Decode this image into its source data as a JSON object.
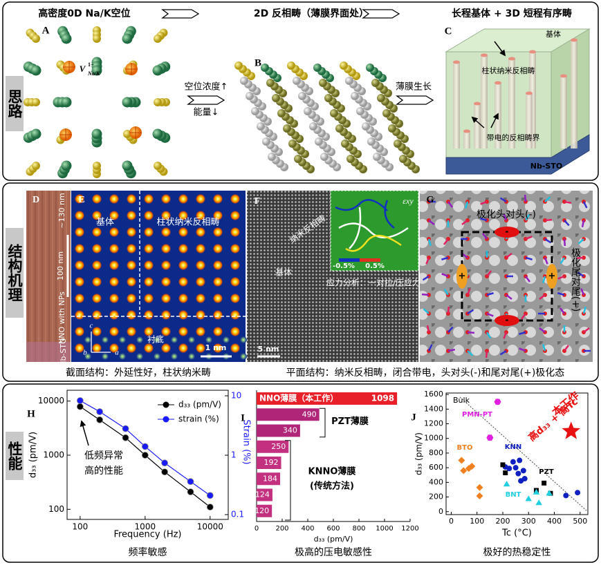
{
  "idea": {
    "label": "思路",
    "titles": [
      "高密度0D Na/K空位",
      "2D 反相畴（薄膜界面处）",
      "长程基体 + 3D 短程有序畴"
    ],
    "panels": {
      "a": "A",
      "b": "B",
      "c": "C"
    },
    "vacancy": {
      "symbol": "V",
      "sup": "1−",
      "sub": "Na/K"
    },
    "step1": [
      "空位浓度↑",
      "能量↓"
    ],
    "step2": "薄膜生长",
    "c_labels": [
      "基体",
      "柱状纳米反相畴",
      "带电的反相畴界",
      "Nb-STO"
    ]
  },
  "structure": {
    "label": "结构机理",
    "d": {
      "letter": "D",
      "labels": [
        "~130 nm",
        "100 nm",
        "NNO with NPs",
        "Nb-STO"
      ]
    },
    "e": {
      "letter": "E",
      "labels": [
        "基体",
        "柱状纳米反相畴",
        "衬底",
        "1 nm"
      ],
      "axes": [
        "c",
        "b",
        "a"
      ]
    },
    "f": {
      "letter": "F",
      "labels": [
        "纳米反相畴",
        "基体",
        "5 nm",
        "应力分析：一对拉/压应力"
      ],
      "strain": {
        "symbol": "εxy",
        "min": "-0.5%",
        "max": "0.5%"
      }
    },
    "g": {
      "letter": "G",
      "labels": [
        "极化头对头(-)",
        "极化尾对尾(+)"
      ],
      "charges": [
        "-",
        "+"
      ]
    },
    "captions": [
      "截面结构：外延性好，柱状纳米畴",
      "平面结构：纳米反相畴，闭合带电，头对头(-)和尾对尾(+)极化态"
    ]
  },
  "performance": {
    "label": "性能"
  },
  "chart_data": [
    {
      "type": "line",
      "letter": "H",
      "xlabel": "Frequency (Hz)",
      "ylabel": "d₃₃ (pm/V)",
      "y2label": "Strain (%)",
      "log": true,
      "x": [
        100,
        200,
        500,
        1000,
        2000,
        5000,
        10000
      ],
      "xlim": [
        63,
        19000
      ],
      "ylim": [
        65,
        15850
      ],
      "y2lim": [
        0.083,
        12.4
      ],
      "xticks": [
        100,
        1000,
        10000
      ],
      "yticks": [
        100,
        1000,
        10000
      ],
      "y2ticks": [
        0.1,
        1,
        10
      ],
      "series": [
        {
          "name": "d₃₃ (pm/V)",
          "color": "#000000",
          "values": [
            7900,
            4500,
            2100,
            1000,
            490,
            210,
            110
          ]
        },
        {
          "name": "strain (%)",
          "color": "#1a1aff",
          "axis": "y2",
          "values": [
            8.3,
            5.4,
            2.8,
            1.4,
            0.74,
            0.36,
            0.21
          ]
        }
      ],
      "annotation": [
        "低频异常",
        "高的性能"
      ],
      "caption": "频率敏感"
    },
    {
      "type": "hbar",
      "letter": "I",
      "xlabel": "d₃₃ (pm/V)",
      "categories": [
        "NNO薄膜（本工作）",
        null,
        null,
        null,
        null,
        null,
        null,
        null
      ],
      "values": [
        1098,
        490,
        340,
        250,
        192,
        184,
        124,
        120
      ],
      "colors": [
        "#e8202a",
        "#b02578",
        "#b02578",
        "#c2307f",
        "#c2307f",
        "#c2307f",
        "#c2307f",
        "#c2307f"
      ],
      "xlim": [
        0,
        1200
      ],
      "xticks": [
        0,
        200,
        400,
        600,
        800,
        1000,
        1200
      ],
      "groups": [
        "PZT薄膜",
        "KNNO薄膜",
        "(传统方法)"
      ],
      "caption": "极高的压电敏感性"
    },
    {
      "type": "scatter",
      "letter": "J",
      "xlabel": "Tc (°C)",
      "ylabel": "d₃₃ (pm/V)",
      "xlim": [
        -20,
        530
      ],
      "ylim": [
        -40,
        1620
      ],
      "xticks": [
        0,
        100,
        200,
        300,
        400,
        500
      ],
      "yticks": [
        0,
        200,
        400,
        600,
        800,
        1000,
        1200,
        1400,
        1600
      ],
      "series": [
        {
          "name": "PMN-PT",
          "color": "#e020e0",
          "marker": "hexagon",
          "x": [
            180,
            150
          ],
          "values": [
            1500,
            1010
          ]
        },
        {
          "name": "BTO",
          "color": "#f08020",
          "marker": "diamond",
          "x": [
            40,
            80,
            48,
            68,
            110,
            110
          ],
          "values": [
            700,
            620,
            560,
            590,
            330,
            215
          ]
        },
        {
          "name": "KNN",
          "color": "#1020c0",
          "marker": "circle",
          "x": [
            210,
            225,
            240,
            250,
            260,
            265,
            270,
            280,
            285,
            445,
            490
          ],
          "values": [
            610,
            590,
            680,
            600,
            520,
            700,
            420,
            560,
            450,
            220,
            260
          ]
        },
        {
          "name": "PZT",
          "color": "#000000",
          "marker": "square",
          "x": [
            200,
            210,
            360,
            385,
            330
          ],
          "values": [
            640,
            530,
            390,
            250,
            290
          ]
        },
        {
          "name": "BNT",
          "color": "#20d0e0",
          "marker": "triangle",
          "x": [
            215,
            300,
            340,
            380,
            330
          ],
          "values": [
            370,
            170,
            115,
            245,
            260
          ]
        },
        {
          "name": "本工作",
          "color": "#e81010",
          "marker": "star",
          "x": [
            465
          ],
          "values": [
            1098
          ]
        }
      ],
      "notes": [
        "Bulk",
        "高d₃₃ + 高Tc"
      ],
      "caption": "极好的热稳定性"
    }
  ]
}
